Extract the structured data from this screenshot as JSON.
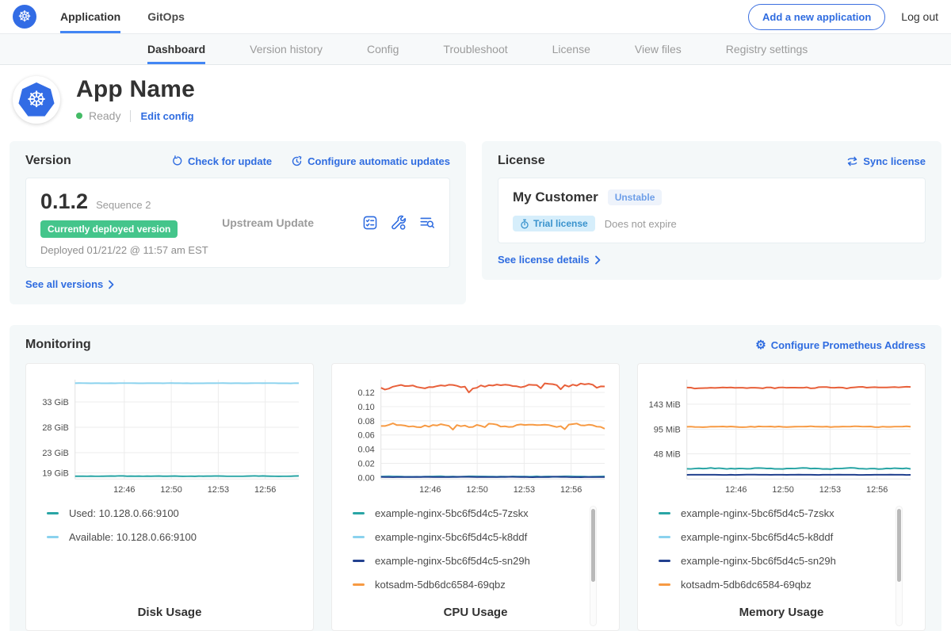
{
  "icons": {
    "helm": "☸",
    "gear": "⚙"
  },
  "topnav": {
    "tabs": [
      {
        "label": "Application"
      },
      {
        "label": "GitOps"
      }
    ],
    "add_app_button": "Add a new application",
    "logout": "Log out"
  },
  "subnav": {
    "tabs": [
      {
        "label": "Dashboard"
      },
      {
        "label": "Version history"
      },
      {
        "label": "Config"
      },
      {
        "label": "Troubleshoot"
      },
      {
        "label": "License"
      },
      {
        "label": "View files"
      },
      {
        "label": "Registry settings"
      }
    ]
  },
  "app_header": {
    "name": "App Name",
    "status": "Ready",
    "edit_config": "Edit config"
  },
  "version_card": {
    "title": "Version",
    "check_for_update": "Check for update",
    "configure_auto_updates": "Configure automatic updates",
    "version": "0.1.2",
    "sequence": "Sequence 2",
    "deployed_badge": "Currently deployed version",
    "deployed_at": "Deployed 01/21/22 @ 11:57 am EST",
    "source": "Upstream Update",
    "see_all": "See all versions"
  },
  "license_card": {
    "title": "License",
    "sync": "Sync license",
    "customer": "My Customer",
    "channel": "Unstable",
    "type_badge": "Trial license",
    "expiry": "Does not expire",
    "details": "See license details"
  },
  "monitoring": {
    "title": "Monitoring",
    "configure": "Configure Prometheus Address"
  },
  "chart_data": [
    {
      "type": "line",
      "title": "Disk Usage",
      "x_ticks": [
        "12:46",
        "12:50",
        "12:53",
        "12:56"
      ],
      "ylim": [
        17.8,
        37.4
      ],
      "y_ticks": [
        {
          "value": 33,
          "label": "33 GiB"
        },
        {
          "value": 28,
          "label": "28 GiB"
        },
        {
          "value": 23,
          "label": "23 GiB"
        },
        {
          "value": 19,
          "label": "19 GiB"
        }
      ],
      "series": [
        {
          "name": "Available: 10.128.0.66:9100",
          "color": "#8ad2ee",
          "value": 36.7,
          "amplitude": 0.03,
          "jagged": false
        },
        {
          "name": "Used: 10.128.0.66:9100",
          "color": "#29a5a5",
          "value": 18.35,
          "amplitude": 0.05,
          "jagged": false
        }
      ],
      "legend": [
        {
          "color": "#29a5a5",
          "label": "Used: 10.128.0.66:9100"
        },
        {
          "color": "#8ad2ee",
          "label": "Available: 10.128.0.66:9100"
        }
      ],
      "legend_scrollbar": false
    },
    {
      "type": "line",
      "title": "CPU Usage",
      "x_ticks": [
        "12:46",
        "12:50",
        "12:53",
        "12:56"
      ],
      "ylim": [
        -0.002,
        0.138
      ],
      "y_ticks": [
        {
          "value": 0.12,
          "label": "0.12"
        },
        {
          "value": 0.1,
          "label": "0.10"
        },
        {
          "value": 0.08,
          "label": "0.08"
        },
        {
          "value": 0.06,
          "label": "0.06"
        },
        {
          "value": 0.04,
          "label": "0.04"
        },
        {
          "value": 0.02,
          "label": "0.02"
        },
        {
          "value": 0.0,
          "label": "0.00"
        }
      ],
      "series": [
        {
          "name": "",
          "color": "#e8603a",
          "value": 0.129,
          "amplitude": 0.003,
          "jagged": true,
          "trend": 0.004
        },
        {
          "name": "kotsadm-5db6dc6584-69qbz",
          "color": "#f79a43",
          "value": 0.0735,
          "amplitude": 0.0028,
          "jagged": true
        },
        {
          "name": "example-nginx-5bc6f5d4c5-7zskx",
          "color": "#29a5a5",
          "value": 0.0015,
          "amplitude": 0.0004,
          "jagged": false
        },
        {
          "name": "example-nginx-5bc6f5d4c5-k8ddf",
          "color": "#8ad2ee",
          "value": 0.001,
          "amplitude": 0.0003,
          "jagged": false
        },
        {
          "name": "example-nginx-5bc6f5d4c5-sn29h",
          "color": "#22418f",
          "value": 0.0008,
          "amplitude": 0.0003,
          "jagged": false
        }
      ],
      "legend": [
        {
          "color": "#29a5a5",
          "label": "example-nginx-5bc6f5d4c5-7zskx"
        },
        {
          "color": "#8ad2ee",
          "label": "example-nginx-5bc6f5d4c5-k8ddf"
        },
        {
          "color": "#22418f",
          "label": "example-nginx-5bc6f5d4c5-sn29h"
        },
        {
          "color": "#f79a43",
          "label": "kotsadm-5db6dc6584-69qbz"
        }
      ],
      "legend_scrollbar": true
    },
    {
      "type": "line",
      "title": "Memory Usage",
      "x_ticks": [
        "12:46",
        "12:50",
        "12:53",
        "12:56"
      ],
      "ylim": [
        0,
        190
      ],
      "y_ticks": [
        {
          "value": 143,
          "label": "143 MiB"
        },
        {
          "value": 95,
          "label": "95 MiB"
        },
        {
          "value": 48,
          "label": "48 MiB"
        }
      ],
      "series": [
        {
          "name": "",
          "color": "#e8603a",
          "value": 175,
          "amplitude": 0.9,
          "jagged": true,
          "trend": 1.5
        },
        {
          "name": "kotsadm-5db6dc6584-69qbz",
          "color": "#f79a43",
          "value": 100,
          "amplitude": 0.9,
          "jagged": false
        },
        {
          "name": "example-nginx-5bc6f5d4c5-7zskx",
          "color": "#29a5a5",
          "value": 20,
          "amplitude": 1.2,
          "jagged": false
        },
        {
          "name": "example-nginx-5bc6f5d4c5-sn29h",
          "color": "#22418f",
          "value": 8,
          "amplitude": 0.3,
          "jagged": false
        }
      ],
      "legend": [
        {
          "color": "#29a5a5",
          "label": "example-nginx-5bc6f5d4c5-7zskx"
        },
        {
          "color": "#8ad2ee",
          "label": "example-nginx-5bc6f5d4c5-k8ddf"
        },
        {
          "color": "#22418f",
          "label": "example-nginx-5bc6f5d4c5-sn29h"
        },
        {
          "color": "#f79a43",
          "label": "kotsadm-5db6dc6584-69qbz"
        }
      ],
      "legend_scrollbar": true
    }
  ]
}
